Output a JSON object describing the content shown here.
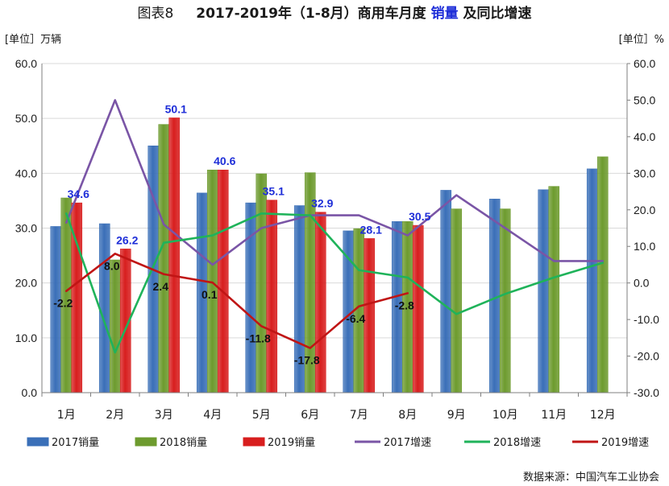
{
  "chart_data": {
    "type": "bar",
    "title_prefix": "图表8",
    "title_main": "2017-2019年（1-8月）商用车月度",
    "title_highlight": "销量",
    "title_suffix": "及同比增速",
    "ylabel_left": "[单位］万辆",
    "ylabel_right": "[单位］%",
    "source": "数据来源：中国汽车工业协会",
    "categories": [
      "1月",
      "2月",
      "3月",
      "4月",
      "5月",
      "6月",
      "7月",
      "8月",
      "9月",
      "10月",
      "11月",
      "12月"
    ],
    "ylim_left": [
      0,
      60
    ],
    "left_ticks": [
      "0.0",
      "10.0",
      "20.0",
      "30.0",
      "40.0",
      "50.0",
      "60.0"
    ],
    "ylim_right": [
      -30,
      60
    ],
    "right_ticks": [
      "-30.0",
      "-20.0",
      "-10.0",
      "0.0",
      "10.0",
      "20.0",
      "30.0",
      "40.0",
      "50.0",
      "60.0"
    ],
    "bar_series": [
      {
        "name": "2017销量",
        "color": "#3a6fb8",
        "values": [
          30.3,
          30.8,
          45.0,
          36.4,
          34.6,
          34.1,
          29.5,
          31.2,
          36.9,
          35.3,
          37.0,
          40.8
        ]
      },
      {
        "name": "2018销量",
        "color": "#6d9b2e",
        "values": [
          35.5,
          24.2,
          48.9,
          40.6,
          39.9,
          40.1,
          29.9,
          31.2,
          33.5,
          33.5,
          37.6,
          43.0
        ]
      },
      {
        "name": "2019销量",
        "color": "#d81e1e",
        "values": [
          34.6,
          26.2,
          50.1,
          40.6,
          35.1,
          32.9,
          28.1,
          30.5,
          null,
          null,
          null,
          null
        ]
      }
    ],
    "bar_value_labels": [
      "34.6",
      "26.2",
      "50.1",
      "40.6",
      "35.1",
      "32.9",
      "28.1",
      "30.5"
    ],
    "line_series": [
      {
        "name": "2017增速",
        "color": "#7a55a6",
        "values": [
          16.5,
          50.0,
          16.0,
          5.0,
          15.0,
          18.5,
          18.5,
          13.0,
          24.0,
          15.0,
          6.0,
          6.0
        ]
      },
      {
        "name": "2018增速",
        "color": "#1fb35a",
        "values": [
          19.0,
          -19.0,
          11.0,
          13.0,
          19.0,
          18.5,
          3.5,
          1.5,
          -8.5,
          -3.0,
          1.5,
          5.5
        ]
      },
      {
        "name": "2019增速",
        "color": "#c01515",
        "values": [
          -2.2,
          8.0,
          2.4,
          0.1,
          -11.8,
          -17.8,
          -6.4,
          -2.8,
          null,
          null,
          null,
          null
        ]
      }
    ],
    "line_value_labels": [
      "-2.2",
      "8.0",
      "2.4",
      "0.1",
      "-11.8",
      "-17.8",
      "-6.4",
      "-2.8"
    ],
    "legend_position": "bottom",
    "grid": "horizontal",
    "colors": {
      "value_label_blue": "#1e2ed8",
      "axis": "#7f7f7f",
      "grid": "#d9d9d9"
    }
  }
}
